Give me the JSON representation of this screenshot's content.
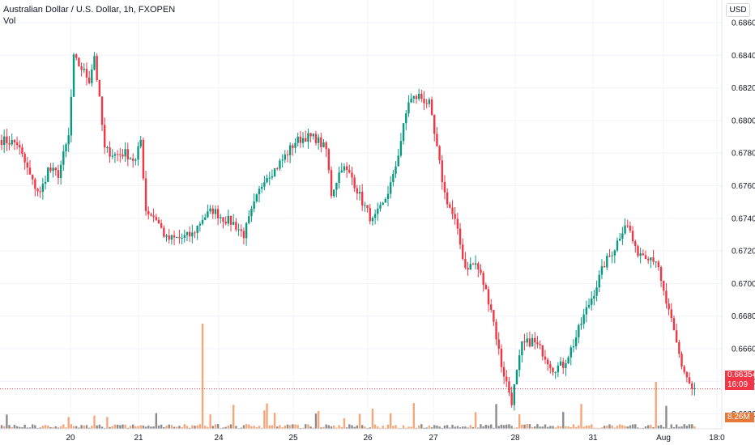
{
  "header": {
    "title": "Australian Dollar / U.S. Dollar, 1h, FXOPEN",
    "volume_label": "Vol"
  },
  "currency_button": {
    "label": "USD"
  },
  "price_axis": {
    "ticks": [
      "0.68600",
      "0.68400",
      "0.68200",
      "0.68000",
      "0.67800",
      "0.67600",
      "0.67400",
      "0.67200",
      "0.67000",
      "0.66800",
      "0.66600",
      "0.66400",
      "0.66200"
    ]
  },
  "time_axis": {
    "ticks": [
      "20",
      "21",
      "24",
      "25",
      "26",
      "27",
      "28",
      "31",
      "Aug",
      "18:0"
    ]
  },
  "last_price": {
    "value": "0.66354",
    "countdown": "16:09",
    "color": "#f23645"
  },
  "volume_tag": {
    "value": "8.26M",
    "color": "#e8773a"
  },
  "colors": {
    "up": "#089981",
    "down": "#f23645",
    "vol_up": "#f5a77a",
    "vol_down": "#8c8c8c",
    "grid": "#f0f3fa"
  },
  "chart_data": {
    "type": "candlestick",
    "ylim": [
      0.6615,
      0.687
    ],
    "grid": true,
    "price_anchor_path": [
      [
        0,
        0.6788
      ],
      [
        6,
        0.6786
      ],
      [
        12,
        0.6762
      ],
      [
        15,
        0.6755
      ],
      [
        18,
        0.677
      ],
      [
        22,
        0.6767
      ],
      [
        26,
        0.679
      ],
      [
        28,
        0.6838
      ],
      [
        31,
        0.6832
      ],
      [
        34,
        0.6825
      ],
      [
        36,
        0.684
      ],
      [
        38,
        0.6812
      ],
      [
        40,
        0.6782
      ],
      [
        44,
        0.6779
      ],
      [
        48,
        0.678
      ],
      [
        52,
        0.6775
      ],
      [
        54,
        0.6788
      ],
      [
        56,
        0.6745
      ],
      [
        60,
        0.674
      ],
      [
        64,
        0.6727
      ],
      [
        70,
        0.6728
      ],
      [
        74,
        0.673
      ],
      [
        78,
        0.674
      ],
      [
        82,
        0.6745
      ],
      [
        86,
        0.674
      ],
      [
        90,
        0.6737
      ],
      [
        94,
        0.673
      ],
      [
        98,
        0.6748
      ],
      [
        102,
        0.6765
      ],
      [
        106,
        0.677
      ],
      [
        110,
        0.6778
      ],
      [
        114,
        0.6787
      ],
      [
        118,
        0.679
      ],
      [
        122,
        0.6789
      ],
      [
        126,
        0.6782
      ],
      [
        128,
        0.6755
      ],
      [
        132,
        0.6772
      ],
      [
        136,
        0.6765
      ],
      [
        140,
        0.675
      ],
      [
        144,
        0.6738
      ],
      [
        148,
        0.6748
      ],
      [
        152,
        0.6765
      ],
      [
        154,
        0.678
      ],
      [
        158,
        0.6812
      ],
      [
        162,
        0.6815
      ],
      [
        166,
        0.681
      ],
      [
        168,
        0.6791
      ],
      [
        172,
        0.6755
      ],
      [
        176,
        0.6738
      ],
      [
        180,
        0.671
      ],
      [
        184,
        0.6712
      ],
      [
        186,
        0.6705
      ],
      [
        190,
        0.6685
      ],
      [
        194,
        0.665
      ],
      [
        198,
        0.6628
      ],
      [
        202,
        0.6662
      ],
      [
        206,
        0.6665
      ],
      [
        210,
        0.6658
      ],
      [
        214,
        0.6648
      ],
      [
        218,
        0.665
      ],
      [
        222,
        0.6663
      ],
      [
        226,
        0.668
      ],
      [
        230,
        0.6695
      ],
      [
        234,
        0.6712
      ],
      [
        238,
        0.6722
      ],
      [
        242,
        0.6737
      ],
      [
        244,
        0.6732
      ],
      [
        246,
        0.672
      ],
      [
        250,
        0.6718
      ],
      [
        254,
        0.6715
      ],
      [
        256,
        0.67
      ],
      [
        260,
        0.6676
      ],
      [
        264,
        0.665
      ],
      [
        268,
        0.6635
      ]
    ],
    "volume_spike_1": 78,
    "volume_spike_2": 1.65
  }
}
